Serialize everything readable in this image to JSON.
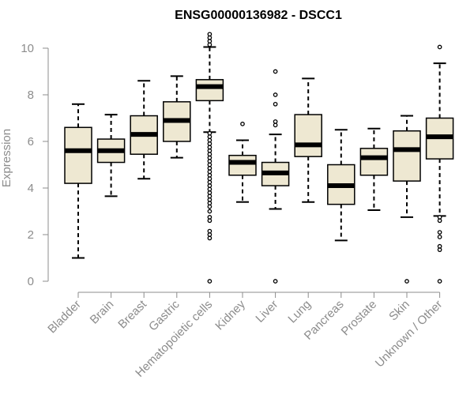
{
  "chart_data": {
    "type": "boxplot",
    "title": "ENSG00000136982 - DSCC1",
    "xlabel": "",
    "ylabel": "Expression",
    "ylim": [
      0,
      10.5
    ],
    "yticks": [
      "0",
      "2",
      "4",
      "6",
      "8",
      "10"
    ],
    "grid": false,
    "colors": {
      "box_fill": "#eee8d2",
      "stroke": "#000000",
      "axis": "#8c8c8c"
    },
    "categories": [
      "Bladder",
      "Brain",
      "Breast",
      "Gastric",
      "Hematopoietic cells",
      "Kidney",
      "Liver",
      "Lung",
      "Pancreas",
      "Prostate",
      "Skin",
      "Unknown / Other"
    ],
    "boxes": [
      {
        "label": "Bladder",
        "whisker_low": 1.0,
        "q1": 4.2,
        "median": 5.6,
        "q3": 6.6,
        "whisker_high": 7.6,
        "outliers": []
      },
      {
        "label": "Brain",
        "whisker_low": 3.65,
        "q1": 5.1,
        "median": 5.6,
        "q3": 6.1,
        "whisker_high": 7.15,
        "outliers": []
      },
      {
        "label": "Breast",
        "whisker_low": 4.4,
        "q1": 5.45,
        "median": 6.3,
        "q3": 7.1,
        "whisker_high": 8.6,
        "outliers": []
      },
      {
        "label": "Gastric",
        "whisker_low": 5.3,
        "q1": 6.0,
        "median": 6.9,
        "q3": 7.7,
        "whisker_high": 8.8,
        "outliers": []
      },
      {
        "label": "Hematopoietic cells",
        "whisker_low": 6.4,
        "q1": 7.75,
        "median": 8.35,
        "q3": 8.65,
        "whisker_high": 10.05,
        "outliers": [
          0.0,
          1.85,
          2.0,
          2.15,
          2.6,
          2.75,
          3.0,
          3.2,
          3.35,
          3.5,
          3.65,
          3.8,
          3.95,
          4.1,
          4.25,
          4.4,
          4.55,
          4.7,
          4.85,
          5.0,
          5.15,
          5.3,
          5.45,
          5.6,
          5.75,
          5.9,
          6.05,
          6.2,
          6.35,
          10.15,
          10.3,
          10.45,
          10.6
        ]
      },
      {
        "label": "Kidney",
        "whisker_low": 3.4,
        "q1": 4.55,
        "median": 5.1,
        "q3": 5.4,
        "whisker_high": 6.05,
        "outliers": [
          6.75
        ]
      },
      {
        "label": "Liver",
        "whisker_low": 3.1,
        "q1": 4.1,
        "median": 4.65,
        "q3": 5.1,
        "whisker_high": 6.3,
        "outliers": [
          0.0,
          6.7,
          6.85,
          7.6,
          8.0,
          9.0
        ]
      },
      {
        "label": "Lung",
        "whisker_low": 3.4,
        "q1": 5.35,
        "median": 5.85,
        "q3": 7.15,
        "whisker_high": 8.7,
        "outliers": []
      },
      {
        "label": "Pancreas",
        "whisker_low": 1.75,
        "q1": 3.3,
        "median": 4.1,
        "q3": 5.0,
        "whisker_high": 6.5,
        "outliers": []
      },
      {
        "label": "Prostate",
        "whisker_low": 3.05,
        "q1": 4.55,
        "median": 5.3,
        "q3": 5.7,
        "whisker_high": 6.55,
        "outliers": []
      },
      {
        "label": "Skin",
        "whisker_low": 2.75,
        "q1": 4.3,
        "median": 5.65,
        "q3": 6.45,
        "whisker_high": 7.1,
        "outliers": [
          0.0
        ]
      },
      {
        "label": "Unknown / Other",
        "whisker_low": 2.8,
        "q1": 5.25,
        "median": 6.2,
        "q3": 7.0,
        "whisker_high": 9.35,
        "outliers": [
          0.0,
          1.35,
          1.5,
          1.9,
          2.1,
          2.6,
          2.75,
          10.05
        ]
      }
    ]
  }
}
